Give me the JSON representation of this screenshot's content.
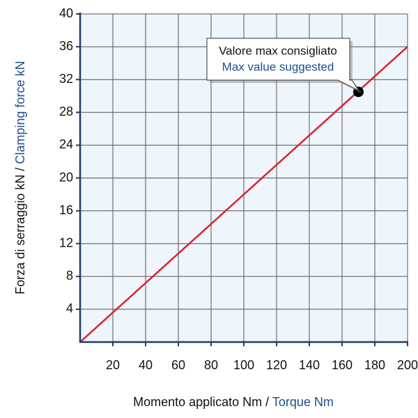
{
  "chart_data": {
    "type": "line",
    "x_label": {
      "main": "Momento applicato Nm /",
      "translation": "Torque Nm"
    },
    "y_label": {
      "main": "Forza di serraggio kN  /",
      "translation": "Clamping force kN"
    },
    "series": [
      {
        "x": [
          0,
          200
        ],
        "values": [
          0,
          36
        ],
        "color": "#d9232d"
      }
    ],
    "marker": {
      "x": 170,
      "y": 30.5,
      "color": "#000000"
    },
    "annotation": {
      "main": "Valore max consigliato",
      "translation": "Max value suggested"
    },
    "xlim": [
      0,
      200
    ],
    "xticks": [
      20,
      40,
      60,
      80,
      100,
      120,
      140,
      160,
      180,
      200
    ],
    "ylim": [
      0,
      40
    ],
    "yticks": [
      4,
      8,
      12,
      16,
      20,
      24,
      28,
      32,
      36,
      40
    ],
    "grid": true
  }
}
